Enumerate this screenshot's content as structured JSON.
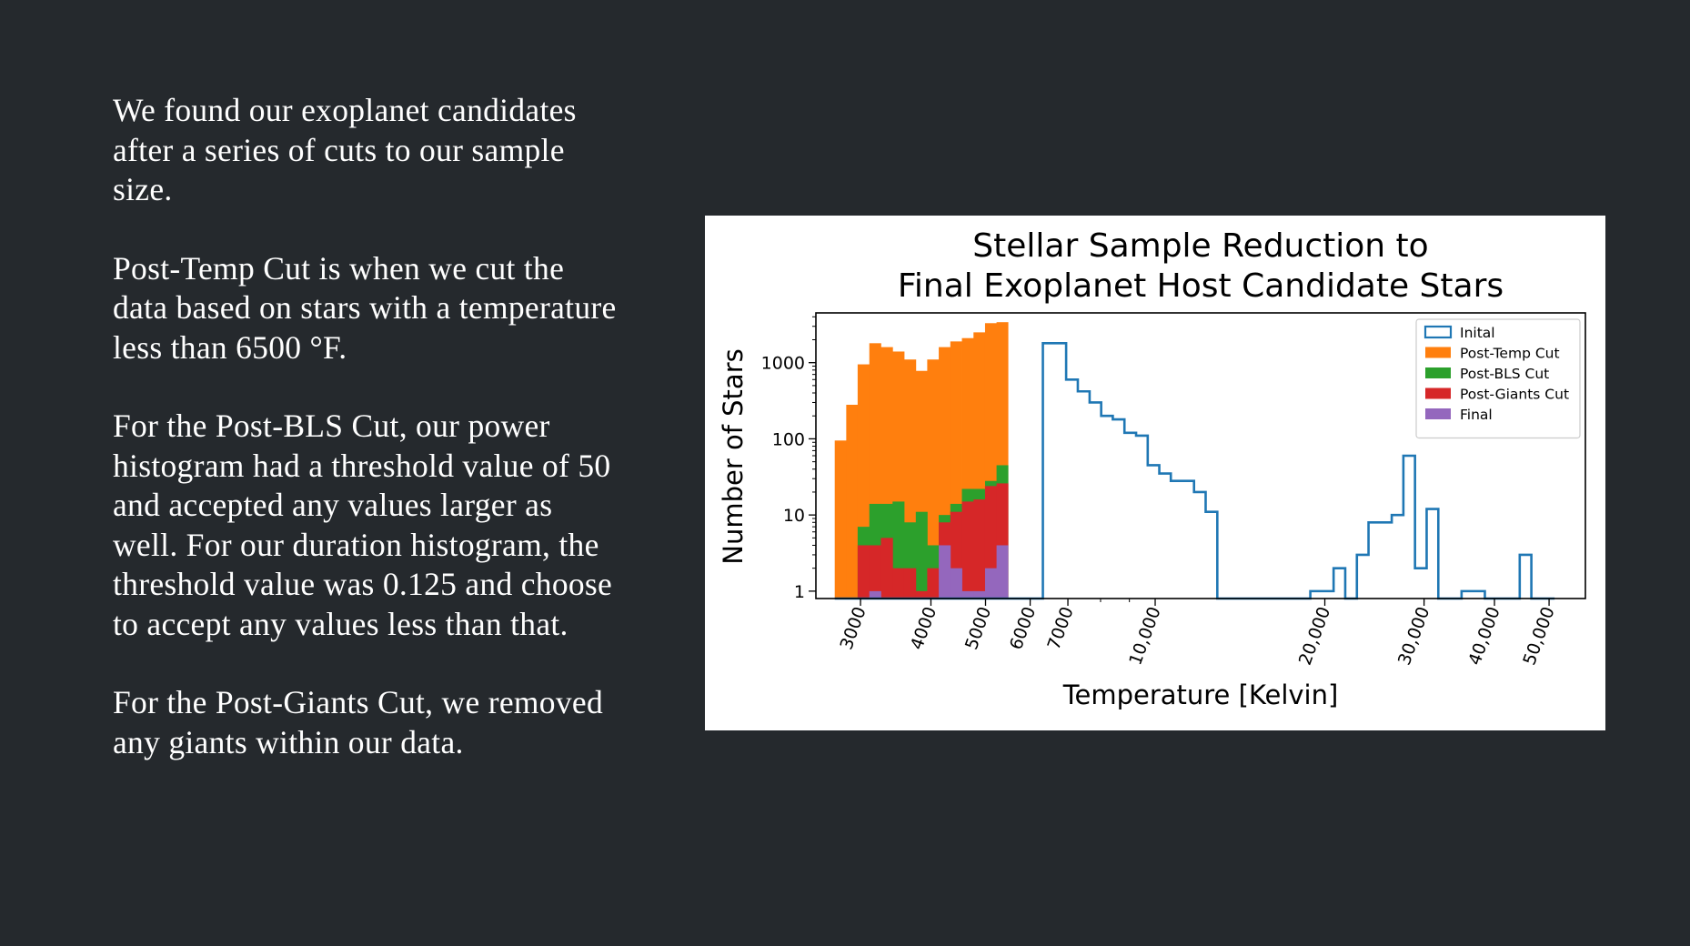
{
  "text_panel": {
    "paragraphs": [
      "We found our exoplanet candidates after a series of cuts to our sample size.",
      "Post-Temp Cut is when we cut the data based on stars with a temperature less than 6500 °F.",
      "For the Post-BLS Cut, our power histogram had a threshold value of 50 and accepted any values larger as well. For our duration histogram, the threshold value was 0.125 and choose to accept any values less than that.",
      "For the Post-Giants Cut, we removed any giants within our data."
    ]
  },
  "chart_data": {
    "type": "histogram",
    "title_lines": [
      "Stellar Sample Reduction to",
      "Final Exoplanet Host Candidate Stars"
    ],
    "xlabel": "Temperature [Kelvin]",
    "ylabel": "Number of Stars",
    "x_scale": "log",
    "y_scale": "log",
    "xlim": [
      2500,
      58000
    ],
    "ylim": [
      0.8,
      4500
    ],
    "x_ticks": [
      3000,
      4000,
      5000,
      6000,
      7000,
      10000,
      20000,
      30000,
      40000,
      50000
    ],
    "x_tick_labels": [
      "3000",
      "4000",
      "5000",
      "6000",
      "7000",
      "10,000",
      "20,000",
      "30,000",
      "40,000",
      "50,000"
    ],
    "y_ticks": [
      1,
      10,
      100,
      1000
    ],
    "y_tick_labels": [
      "1",
      "10",
      "100",
      "1000"
    ],
    "grid": false,
    "legend_position": "upper right",
    "colors": {
      "Inital": "#1f77b4",
      "Post-Temp Cut": "#ff7f0e",
      "Post-BLS Cut": "#2ca02c",
      "Post-Giants Cut": "#d62728",
      "Final": "#9467bd"
    },
    "bin_edges": [
      2700,
      2830,
      2965,
      3110,
      3260,
      3420,
      3585,
      3760,
      3940,
      4130,
      4330,
      4540,
      4760,
      4990,
      5230,
      5480,
      5750,
      6030,
      6320,
      6630,
      6950,
      7290,
      7650,
      8020,
      8410,
      8820,
      9250,
      9700,
      10170,
      10660,
      11180,
      11720,
      12290,
      12890,
      13520,
      14180,
      14870,
      15590,
      16350,
      17140,
      17980,
      18850,
      19770,
      20730,
      21740,
      22800,
      23910,
      25070,
      26290,
      27570,
      28910,
      30320,
      31800,
      33350,
      34970,
      36670,
      38460,
      40330,
      42290,
      44350,
      46510,
      48770,
      51140
    ],
    "series": [
      {
        "name": "Inital",
        "style": "step",
        "values": [
          0,
          0,
          0,
          0,
          0,
          0,
          0,
          0,
          0,
          0,
          0,
          0,
          0,
          0,
          0,
          0,
          0,
          0,
          1800,
          1800,
          600,
          420,
          300,
          200,
          180,
          120,
          110,
          45,
          35,
          28,
          28,
          20,
          11,
          0,
          0,
          0,
          0,
          0,
          0,
          0,
          0,
          1,
          1,
          2,
          0,
          3,
          8,
          8,
          10,
          60,
          2,
          12,
          0,
          0,
          1,
          1,
          0,
          0,
          0,
          3,
          0,
          0
        ]
      },
      {
        "name": "Post-Temp Cut",
        "style": "filled",
        "values": [
          95,
          280,
          950,
          1800,
          1600,
          1400,
          1100,
          780,
          1100,
          1600,
          1900,
          2100,
          2500,
          3300,
          3400,
          0
        ]
      },
      {
        "name": "Post-BLS Cut",
        "style": "filled",
        "values": [
          0,
          0,
          7,
          14,
          14,
          15,
          8,
          11,
          4,
          10,
          14,
          22,
          22,
          28,
          45,
          0
        ]
      },
      {
        "name": "Post-Giants Cut",
        "style": "filled",
        "values": [
          0,
          0,
          4,
          4,
          5,
          2,
          2,
          1,
          2,
          8,
          11,
          15,
          16,
          24,
          26,
          0
        ]
      },
      {
        "name": "Final",
        "style": "filled",
        "values": [
          0,
          0,
          0,
          1,
          0,
          0,
          0,
          0,
          0,
          4,
          2,
          1,
          1,
          2,
          4,
          0
        ]
      }
    ]
  }
}
